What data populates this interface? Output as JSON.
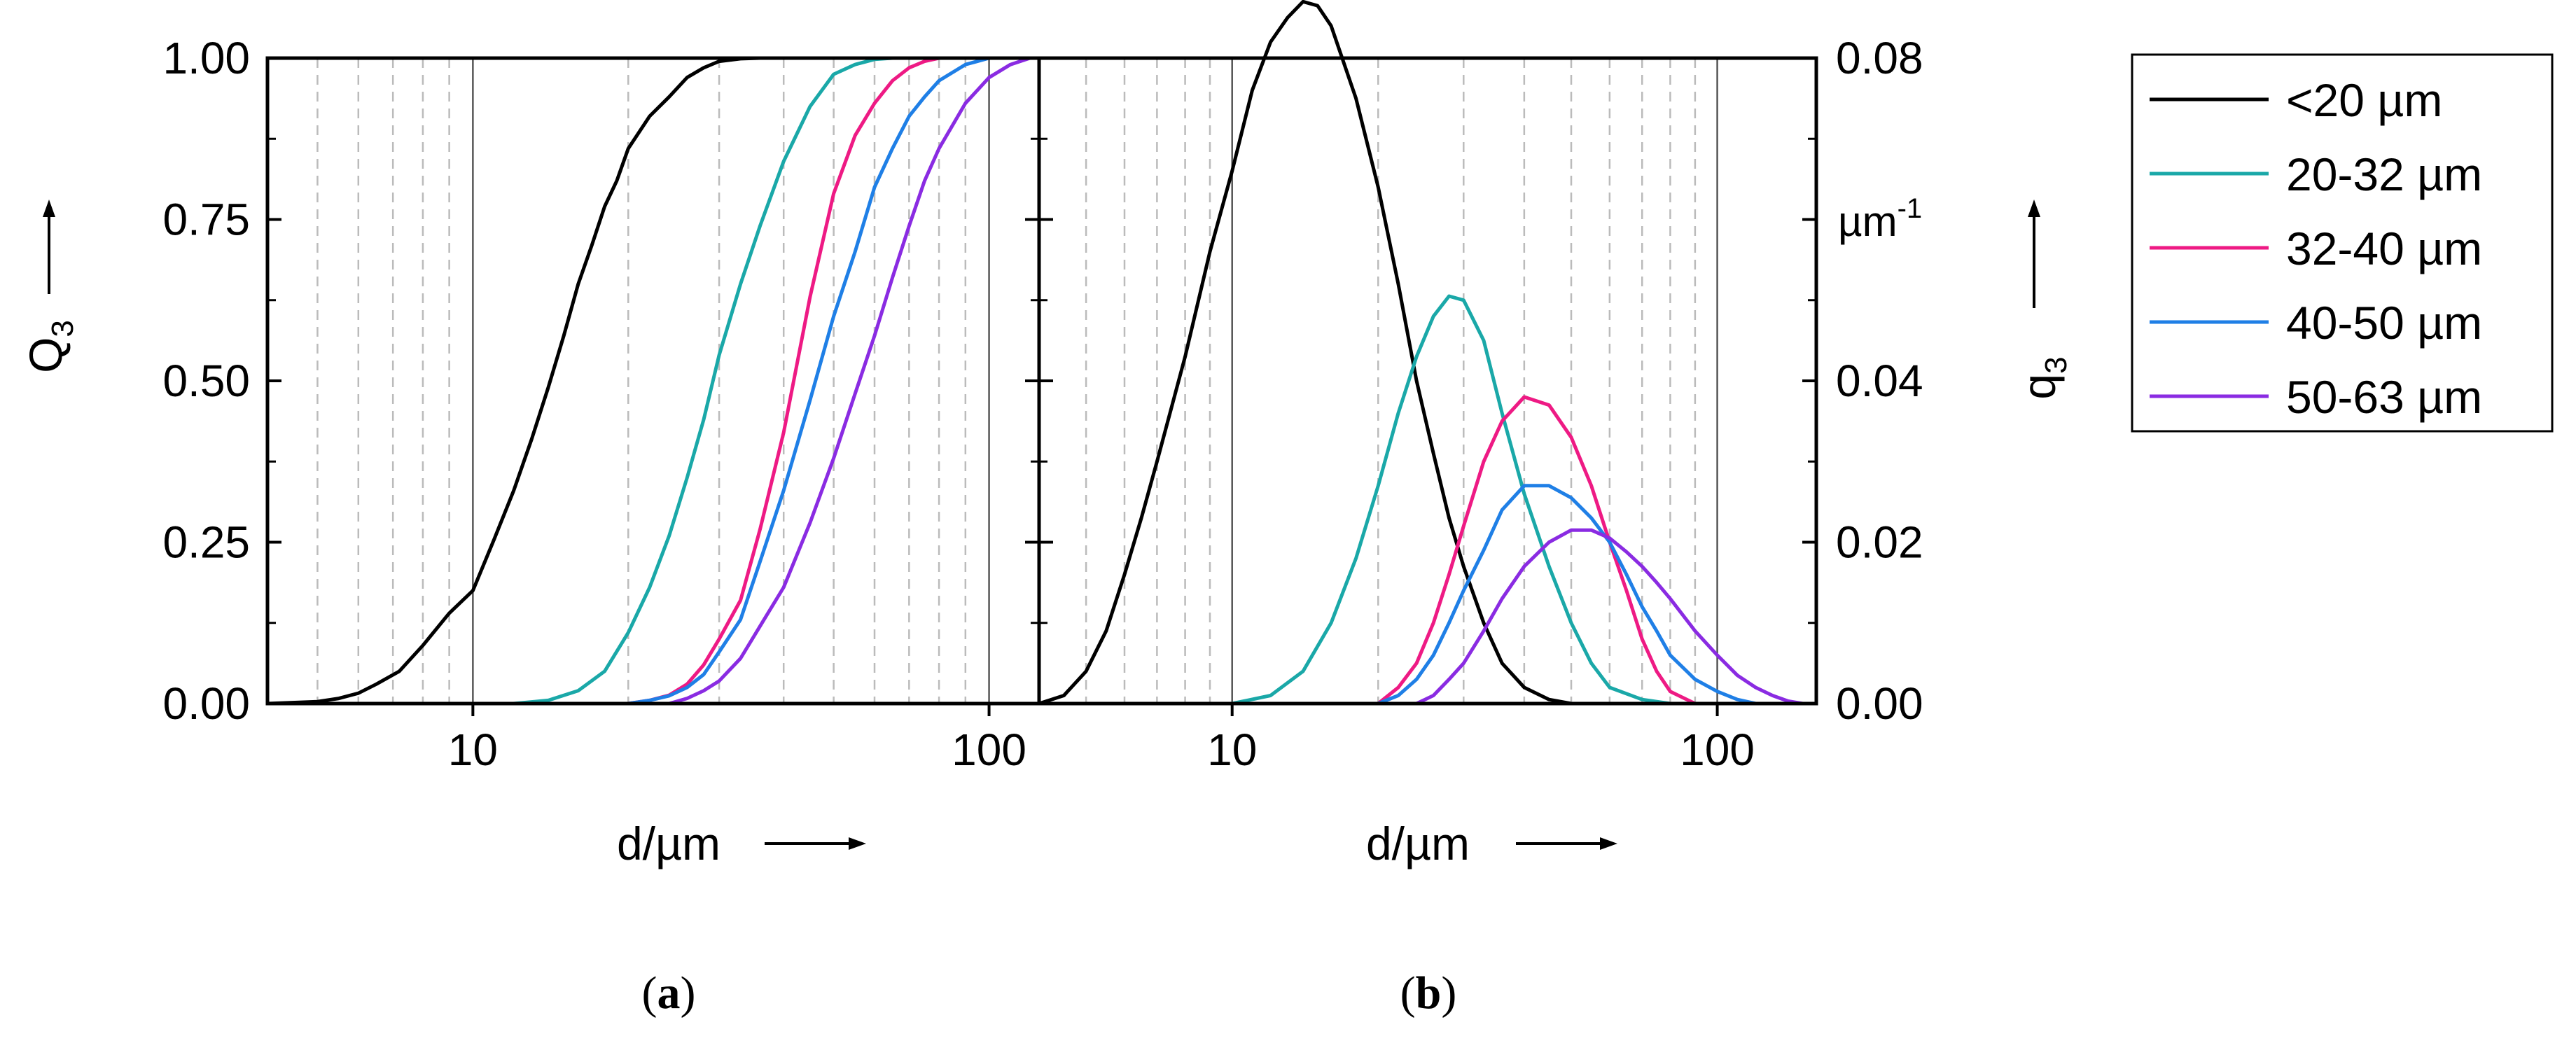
{
  "chart_data": [
    {
      "type": "line",
      "panel_label_open": "(",
      "panel_label_letter": "a",
      "panel_label_close": ")",
      "xscale": "log",
      "xlim": [
        4,
        125
      ],
      "ylim": [
        0,
        1
      ],
      "xlabel": "d/µm",
      "ylabel_main": "Q",
      "ylabel_sub": "3",
      "yticks": [
        0,
        0.25,
        0.5,
        0.75,
        1
      ],
      "ytick_labels": [
        "0.00",
        "0.25",
        "0.50",
        "0.75",
        "1.00"
      ],
      "xticks": [
        10,
        100
      ],
      "xtick_labels": [
        "10",
        "100"
      ],
      "grid": "dashed vertical at minor decades, solid at 10 and 100",
      "series": [
        {
          "name": "<20 µm",
          "color": "#000000",
          "x": [
            4,
            5,
            5.5,
            6,
            6.5,
            7.2,
            8,
            9,
            10,
            11,
            12,
            13,
            14,
            15,
            16,
            17,
            18,
            19,
            20,
            22,
            24,
            26,
            28,
            30,
            33,
            36,
            40
          ],
          "y": [
            0,
            0.003,
            0.008,
            0.016,
            0.03,
            0.05,
            0.09,
            0.14,
            0.175,
            0.255,
            0.33,
            0.41,
            0.49,
            0.57,
            0.65,
            0.71,
            0.77,
            0.81,
            0.86,
            0.91,
            0.94,
            0.97,
            0.985,
            0.995,
            0.999,
            1.0,
            1.0
          ]
        },
        {
          "name": "20-32 µm",
          "color": "#1aa8a8",
          "x": [
            12,
            14,
            16,
            18,
            20,
            22,
            24,
            26,
            28,
            30,
            33,
            36,
            40,
            45,
            50,
            55,
            60,
            65
          ],
          "y": [
            0,
            0.005,
            0.02,
            0.05,
            0.11,
            0.18,
            0.26,
            0.35,
            0.44,
            0.54,
            0.65,
            0.74,
            0.84,
            0.925,
            0.975,
            0.99,
            0.998,
            1.0
          ]
        },
        {
          "name": "32-40 µm",
          "color": "#ee1a84",
          "x": [
            20,
            22,
            24,
            26,
            28,
            30,
            33,
            36,
            40,
            45,
            50,
            55,
            60,
            65,
            70,
            75,
            80
          ],
          "y": [
            0,
            0.005,
            0.013,
            0.03,
            0.06,
            0.1,
            0.16,
            0.27,
            0.42,
            0.63,
            0.79,
            0.88,
            0.93,
            0.965,
            0.985,
            0.995,
            1.0
          ]
        },
        {
          "name": "40-50 µm",
          "color": "#1f7fe6",
          "x": [
            20,
            22,
            24,
            26,
            28,
            30,
            33,
            36,
            40,
            45,
            50,
            55,
            60,
            65,
            70,
            75,
            80,
            90,
            100
          ],
          "y": [
            0,
            0.005,
            0.012,
            0.025,
            0.045,
            0.08,
            0.13,
            0.22,
            0.33,
            0.47,
            0.6,
            0.7,
            0.8,
            0.86,
            0.91,
            0.94,
            0.965,
            0.99,
            1.0
          ]
        },
        {
          "name": "50-63 µm",
          "color": "#8a2be2",
          "x": [
            24,
            26,
            28,
            30,
            33,
            36,
            40,
            45,
            50,
            55,
            60,
            65,
            70,
            75,
            80,
            90,
            100,
            110,
            120
          ],
          "y": [
            0,
            0.008,
            0.02,
            0.035,
            0.07,
            0.12,
            0.18,
            0.28,
            0.38,
            0.48,
            0.57,
            0.66,
            0.74,
            0.81,
            0.86,
            0.93,
            0.97,
            0.99,
            1.0
          ]
        }
      ]
    },
    {
      "type": "line",
      "panel_label_open": "(",
      "panel_label_letter": "b",
      "panel_label_close": ")",
      "xscale": "log",
      "xlim": [
        4,
        160
      ],
      "ylim": [
        0,
        0.08
      ],
      "xlabel": "d/µm",
      "ylabel_main": "q",
      "ylabel_sub": "3",
      "yunit_main": "µm",
      "yunit_sup": "-1",
      "yticks": [
        0,
        0.02,
        0.04,
        0.06,
        0.08
      ],
      "ytick_labels": [
        "0.00",
        "0.02",
        "0.04",
        "",
        "0.08"
      ],
      "xticks": [
        10,
        100
      ],
      "xtick_labels": [
        "10",
        "100"
      ],
      "grid": "dashed vertical at minor decades, solid at 10 and 100",
      "series": [
        {
          "name": "<20 µm",
          "color": "#000000",
          "x": [
            4,
            4.5,
            5,
            5.5,
            6,
            6.5,
            7,
            8,
            9,
            10,
            11,
            12,
            13,
            14,
            15,
            16,
            18,
            20,
            22,
            24,
            26,
            28,
            30,
            33,
            36,
            40,
            45,
            50
          ],
          "y": [
            0,
            0.001,
            0.004,
            0.009,
            0.016,
            0.023,
            0.03,
            0.043,
            0.056,
            0.066,
            0.076,
            0.082,
            0.085,
            0.087,
            0.0865,
            0.084,
            0.075,
            0.064,
            0.052,
            0.04,
            0.031,
            0.023,
            0.017,
            0.01,
            0.005,
            0.002,
            0.0005,
            0
          ]
        },
        {
          "name": "20-32 µm",
          "color": "#1aa8a8",
          "x": [
            10,
            12,
            14,
            16,
            18,
            20,
            22,
            24,
            26,
            28,
            30,
            33,
            36,
            40,
            45,
            50,
            55,
            60,
            70,
            80
          ],
          "y": [
            0,
            0.001,
            0.004,
            0.01,
            0.018,
            0.027,
            0.036,
            0.043,
            0.048,
            0.0505,
            0.05,
            0.045,
            0.036,
            0.026,
            0.017,
            0.01,
            0.005,
            0.002,
            0.0005,
            0
          ]
        },
        {
          "name": "32-40 µm",
          "color": "#ee1a84",
          "x": [
            20,
            22,
            24,
            26,
            28,
            30,
            33,
            36,
            40,
            45,
            50,
            55,
            60,
            65,
            70,
            75,
            80,
            90
          ],
          "y": [
            0,
            0.002,
            0.005,
            0.01,
            0.016,
            0.022,
            0.03,
            0.035,
            0.038,
            0.037,
            0.033,
            0.027,
            0.02,
            0.014,
            0.008,
            0.004,
            0.0015,
            0
          ]
        },
        {
          "name": "40-50 µm",
          "color": "#1f7fe6",
          "x": [
            20,
            22,
            24,
            26,
            28,
            30,
            33,
            36,
            40,
            45,
            50,
            55,
            60,
            65,
            70,
            75,
            80,
            90,
            100,
            110,
            120
          ],
          "y": [
            0,
            0.001,
            0.003,
            0.006,
            0.01,
            0.014,
            0.019,
            0.024,
            0.027,
            0.027,
            0.0255,
            0.023,
            0.02,
            0.016,
            0.012,
            0.009,
            0.006,
            0.003,
            0.0015,
            0.0005,
            0
          ]
        },
        {
          "name": "50-63 µm",
          "color": "#8a2be2",
          "x": [
            24,
            26,
            28,
            30,
            33,
            36,
            40,
            45,
            50,
            55,
            60,
            65,
            70,
            75,
            80,
            90,
            100,
            110,
            120,
            130,
            140,
            150
          ],
          "y": [
            0,
            0.001,
            0.003,
            0.005,
            0.009,
            0.013,
            0.017,
            0.02,
            0.0215,
            0.0215,
            0.0205,
            0.0188,
            0.017,
            0.015,
            0.013,
            0.009,
            0.006,
            0.0035,
            0.002,
            0.001,
            0.0003,
            0
          ]
        }
      ]
    }
  ],
  "legend": {
    "placement": "right",
    "entries": [
      {
        "label": "<20 µm",
        "color": "#000000"
      },
      {
        "label": "20-32 µm",
        "color": "#1aa8a8"
      },
      {
        "label": "32-40 µm",
        "color": "#ee1a84"
      },
      {
        "label": "40-50 µm",
        "color": "#1f7fe6"
      },
      {
        "label": "50-63 µm",
        "color": "#8a2be2"
      }
    ]
  }
}
